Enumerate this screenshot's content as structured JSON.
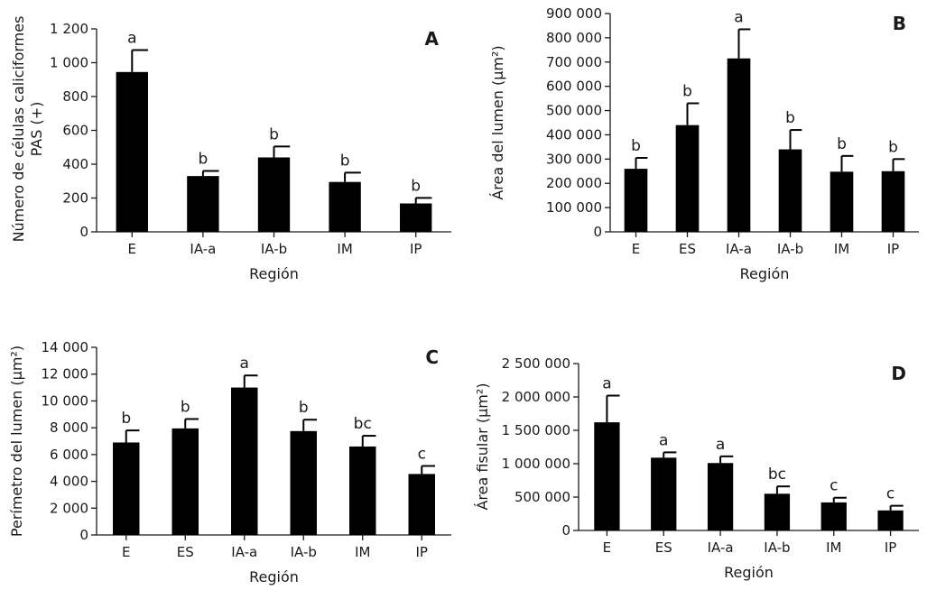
{
  "chart_data": [
    {
      "type": "bar",
      "panel": "A",
      "xlabel": "Región",
      "ylabel_lines": [
        "Número de células caliciformes",
        "PAS (+)"
      ],
      "ylim": [
        0,
        1200
      ],
      "yticks": [
        0,
        200,
        400,
        600,
        800,
        1000,
        1200
      ],
      "ytick_labels": [
        "0",
        "200",
        "400",
        "600",
        "800",
        "1 000",
        "1 200"
      ],
      "categories": [
        "E",
        "IA-a",
        "IA-b",
        "IM",
        "IP"
      ],
      "values": [
        945,
        330,
        440,
        295,
        168
      ],
      "errors": [
        130,
        30,
        65,
        55,
        33
      ],
      "significance": [
        "a",
        "b",
        "b",
        "b",
        "b"
      ]
    },
    {
      "type": "bar",
      "panel": "B",
      "xlabel": "Región",
      "ylabel_lines": [
        "Área del lumen (µm²)"
      ],
      "ylim": [
        0,
        900000
      ],
      "yticks": [
        0,
        100000,
        200000,
        300000,
        400000,
        500000,
        600000,
        700000,
        800000,
        900000
      ],
      "ytick_labels": [
        "0",
        "100 000",
        "200 000",
        "300 000",
        "400 000",
        "500 000",
        "600 000",
        "700 000",
        "800 000",
        "900 000"
      ],
      "categories": [
        "E",
        "ES",
        "IA-a",
        "IA-b",
        "IM",
        "IP"
      ],
      "values": [
        260000,
        440000,
        715000,
        340000,
        248000,
        250000
      ],
      "errors": [
        45000,
        90000,
        120000,
        80000,
        65000,
        50000
      ],
      "significance": [
        "b",
        "b",
        "a",
        "b",
        "b",
        "b"
      ]
    },
    {
      "type": "bar",
      "panel": "C",
      "xlabel": "Región",
      "ylabel_lines": [
        "Perímetro del lumen (µm²)"
      ],
      "ylim": [
        0,
        14000
      ],
      "yticks": [
        0,
        2000,
        4000,
        6000,
        8000,
        10000,
        12000,
        14000
      ],
      "ytick_labels": [
        "0",
        "2 000",
        "4 000",
        "6 000",
        "8 000",
        "10 000",
        "12 000",
        "14 000"
      ],
      "categories": [
        "E",
        "ES",
        "IA-a",
        "IA-b",
        "IM",
        "IP"
      ],
      "values": [
        6900,
        7950,
        11000,
        7750,
        6600,
        4550
      ],
      "errors": [
        900,
        700,
        900,
        850,
        800,
        600
      ],
      "significance": [
        "b",
        "b",
        "a",
        "b",
        "bc",
        "c"
      ]
    },
    {
      "type": "bar",
      "panel": "D",
      "xlabel": "Región",
      "ylabel_lines": [
        "Área fisular (µm²)"
      ],
      "ylim": [
        0,
        2500000
      ],
      "yticks": [
        0,
        500000,
        1000000,
        1500000,
        2000000,
        2500000
      ],
      "ytick_labels": [
        "0",
        "500 000",
        "1 000 000",
        "1 500 000",
        "2 000 000",
        "2 500 000"
      ],
      "categories": [
        "E",
        "ES",
        "IA-a",
        "IA-b",
        "IM",
        "IP"
      ],
      "values": [
        1620000,
        1090000,
        1010000,
        550000,
        420000,
        300000
      ],
      "errors": [
        400000,
        80000,
        100000,
        110000,
        70000,
        70000
      ],
      "significance": [
        "a",
        "a",
        "a",
        "bc",
        "c",
        "c"
      ]
    }
  ]
}
